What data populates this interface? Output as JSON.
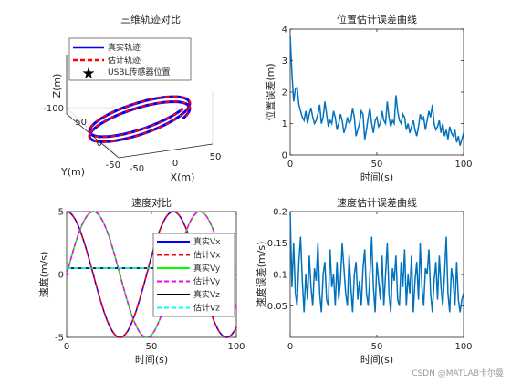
{
  "colors": {
    "matlab_blue": "#0072BD",
    "true_line": "#0000FF",
    "est_line": "#FF0000",
    "vx_true": "#0000FF",
    "vx_est": "#FF0000",
    "vy_true": "#00FF00",
    "vy_est": "#FF00FF",
    "vz_true": "#000000",
    "vz_est": "#00FFFF"
  },
  "watermark": "CSDN @MATLAB卡尔曼",
  "chart_data": [
    {
      "type": "line3d",
      "title": "三维轨迹对比",
      "xlabel": "X(m)",
      "ylabel": "Y(m)",
      "zlabel": "Z(m)",
      "x_ticks": [
        "-50",
        "0",
        "50"
      ],
      "y_ticks": [
        "50",
        "0",
        "-50"
      ],
      "z_ticks": [
        "-100"
      ],
      "legend": [
        "真实轨迹",
        "估计轨迹",
        "USBL传感器位置"
      ],
      "legend_position": "top",
      "helix": {
        "radius": 50,
        "turns": 2
      }
    },
    {
      "type": "line",
      "title": "位置估计误差曲线",
      "xlabel": "时间(s)",
      "ylabel": "位置误差(m)",
      "xlim": [
        0,
        100
      ],
      "ylim": [
        0,
        4
      ],
      "x_ticks": [
        "0",
        "50",
        "100"
      ],
      "y_ticks": [
        "0",
        "1",
        "2",
        "3",
        "4"
      ],
      "x": [
        0,
        1,
        2,
        3,
        4,
        5,
        6,
        7,
        8,
        9,
        10,
        11,
        12,
        13,
        14,
        15,
        16,
        17,
        18,
        19,
        20,
        21,
        22,
        23,
        24,
        25,
        26,
        27,
        28,
        29,
        30,
        31,
        32,
        33,
        34,
        35,
        36,
        37,
        38,
        39,
        40,
        41,
        42,
        43,
        44,
        45,
        46,
        47,
        48,
        49,
        50,
        51,
        52,
        53,
        54,
        55,
        56,
        57,
        58,
        59,
        60,
        61,
        62,
        63,
        64,
        65,
        66,
        67,
        68,
        69,
        70,
        71,
        72,
        73,
        74,
        75,
        76,
        77,
        78,
        79,
        80,
        81,
        82,
        83,
        84,
        85,
        86,
        87,
        88,
        89,
        90,
        91,
        92,
        93,
        94,
        95,
        96,
        97,
        98,
        99,
        100
      ],
      "y": [
        3.8,
        2.6,
        1.7,
        2.1,
        2.15,
        1.6,
        1.4,
        1.2,
        1.1,
        1.4,
        1.0,
        1.3,
        1.5,
        1.2,
        1.0,
        1.1,
        1.3,
        1.6,
        1.0,
        1.2,
        1.7,
        1.3,
        0.9,
        1.1,
        1.0,
        1.4,
        1.2,
        0.8,
        1.0,
        1.3,
        1.1,
        0.7,
        0.9,
        1.2,
        1.0,
        1.1,
        1.5,
        1.2,
        0.6,
        0.8,
        1.0,
        1.4,
        1.3,
        0.5,
        0.8,
        1.2,
        1.5,
        1.0,
        0.7,
        1.1,
        1.2,
        0.9,
        1.0,
        1.4,
        1.1,
        1.0,
        1.7,
        1.2,
        0.9,
        1.1,
        1.0,
        1.9,
        1.4,
        1.1,
        1.0,
        1.3,
        1.2,
        0.8,
        1.0,
        0.7,
        0.9,
        1.1,
        0.8,
        0.6,
        0.9,
        1.3,
        1.1,
        1.2,
        0.8,
        1.1,
        1.4,
        1.2,
        1.6,
        1.0,
        0.8,
        0.9,
        1.1,
        0.7,
        1.0,
        0.6,
        0.8,
        0.5,
        0.9,
        0.7,
        0.6,
        0.8,
        0.4,
        0.6,
        0.3,
        0.5,
        0.7
      ]
    },
    {
      "type": "line",
      "title": "速度对比",
      "xlabel": "时间(s)",
      "ylabel": "速度(m/s)",
      "xlim": [
        0,
        100
      ],
      "ylim": [
        -5,
        5
      ],
      "x_ticks": [
        "0",
        "50",
        "100"
      ],
      "y_ticks": [
        "-5",
        "0",
        "5"
      ],
      "legend_position": "right",
      "series": [
        {
          "name": "真实Vx",
          "amp": 5,
          "omega": 0.1,
          "phase": 1.5708,
          "offset": 0
        },
        {
          "name": "估计Vx",
          "amp": 5,
          "omega": 0.1,
          "phase": 1.5708,
          "offset": 0
        },
        {
          "name": "真实Vy",
          "amp": 5,
          "omega": 0.1,
          "phase": 0,
          "offset": 0
        },
        {
          "name": "估计Vy",
          "amp": 5,
          "omega": 0.1,
          "phase": 0,
          "offset": 0
        },
        {
          "name": "真实Vz",
          "amp": 0,
          "omega": 0,
          "phase": 0,
          "offset": 0.5
        },
        {
          "name": "估计Vz",
          "amp": 0,
          "omega": 0,
          "phase": 0,
          "offset": 0.5
        }
      ]
    },
    {
      "type": "line",
      "title": "速度估计误差曲线",
      "xlabel": "时间(s)",
      "ylabel": "速度误差(m/s)",
      "xlim": [
        0,
        100
      ],
      "ylim": [
        0,
        0.2
      ],
      "x_ticks": [
        "0",
        "50",
        "100"
      ],
      "y_ticks": [
        "0.05",
        "0.1",
        "0.15",
        "0.2"
      ],
      "x": [
        0,
        1,
        2,
        3,
        4,
        5,
        6,
        7,
        8,
        9,
        10,
        11,
        12,
        13,
        14,
        15,
        16,
        17,
        18,
        19,
        20,
        21,
        22,
        23,
        24,
        25,
        26,
        27,
        28,
        29,
        30,
        31,
        32,
        33,
        34,
        35,
        36,
        37,
        38,
        39,
        40,
        41,
        42,
        43,
        44,
        45,
        46,
        47,
        48,
        49,
        50,
        51,
        52,
        53,
        54,
        55,
        56,
        57,
        58,
        59,
        60,
        61,
        62,
        63,
        64,
        65,
        66,
        67,
        68,
        69,
        70,
        71,
        72,
        73,
        74,
        75,
        76,
        77,
        78,
        79,
        80,
        81,
        82,
        83,
        84,
        85,
        86,
        87,
        88,
        89,
        90,
        91,
        92,
        93,
        94,
        95,
        96,
        97,
        98,
        99,
        100
      ],
      "y": [
        0.2,
        0.08,
        0.15,
        0.07,
        0.05,
        0.12,
        0.16,
        0.09,
        0.04,
        0.1,
        0.06,
        0.13,
        0.08,
        0.05,
        0.11,
        0.09,
        0.15,
        0.07,
        0.04,
        0.1,
        0.12,
        0.06,
        0.05,
        0.14,
        0.08,
        0.1,
        0.05,
        0.12,
        0.06,
        0.09,
        0.15,
        0.11,
        0.07,
        0.05,
        0.13,
        0.08,
        0.04,
        0.1,
        0.12,
        0.06,
        0.09,
        0.05,
        0.11,
        0.14,
        0.07,
        0.05,
        0.1,
        0.16,
        0.08,
        0.04,
        0.12,
        0.09,
        0.06,
        0.13,
        0.05,
        0.1,
        0.15,
        0.07,
        0.04,
        0.11,
        0.09,
        0.13,
        0.06,
        0.05,
        0.12,
        0.08,
        0.14,
        0.05,
        0.1,
        0.07,
        0.13,
        0.04,
        0.09,
        0.12,
        0.06,
        0.15,
        0.08,
        0.05,
        0.11,
        0.1,
        0.14,
        0.07,
        0.04,
        0.09,
        0.12,
        0.06,
        0.13,
        0.08,
        0.05,
        0.1,
        0.16,
        0.07,
        0.04,
        0.11,
        0.09,
        0.05,
        0.12,
        0.06,
        0.04,
        0.06,
        0.07
      ]
    }
  ]
}
